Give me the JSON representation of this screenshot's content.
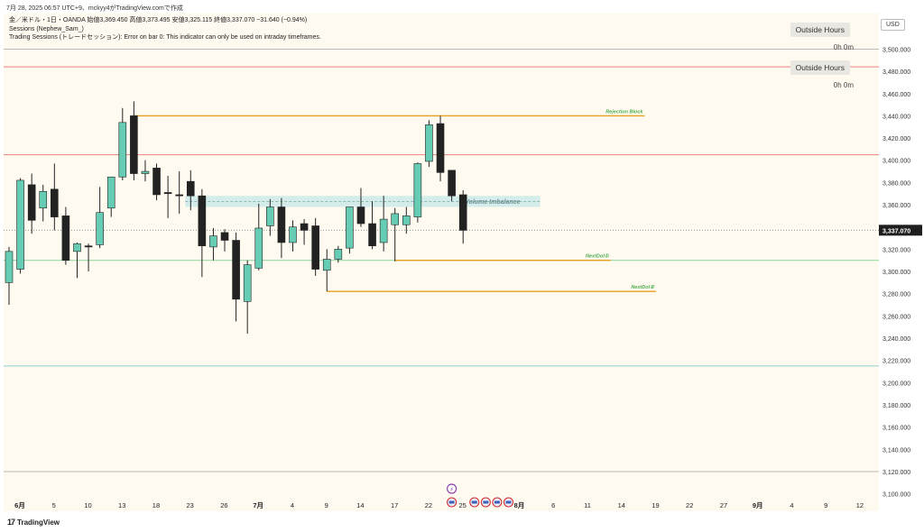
{
  "header": {
    "timestamp_line": "7月 28, 2025 06:57 UTC+9、mckyy4がTradingView.comで作成"
  },
  "legend": {
    "symbol_line": "金／米ドル・1日・OANDA 始値3,369.450 高値3,373.495 安値3,325.115 終値3,337.070 −31.640 (−0.94%)",
    "indicator1": "Sessions (Nephew_Sam_)",
    "indicator2": "Trading Sessions (トレードセッション): Error on bar 0: This indicator can only be used on intraday timeframes."
  },
  "sessions": [
    {
      "label": "Outside Hours",
      "time": "0h 0m"
    },
    {
      "label": "Outside Hours",
      "time": "0h 0m"
    }
  ],
  "currency": "USD",
  "brand": "TradingView",
  "colors": {
    "bull": "#66ccb4",
    "bear": "#222222",
    "red_line": "#f08080",
    "green_line": "#8fd19e",
    "teal_line": "#8ccfcf",
    "orange_level": "#e6a020",
    "imbalance_fill": "#cdeaea",
    "price_label_bg": "#1e1e1e"
  },
  "chart_data": {
    "type": "candlestick",
    "symbol": "XAU/USD",
    "timeframe": "1D",
    "current_price": 3337.07,
    "current_price_label": "3,337.070",
    "ylim": [
      3094,
      3532
    ],
    "y_ticks": [
      3100,
      3120,
      3140,
      3160,
      3180,
      3200,
      3220,
      3240,
      3260,
      3280,
      3300,
      3320,
      3340,
      3360,
      3380,
      3400,
      3420,
      3440,
      3460,
      3480,
      3500
    ],
    "y_tick_labels": [
      "3,100.000",
      "3,120.000",
      "3,140.000",
      "3,160.000",
      "3,180.000",
      "3,200.000",
      "3,220.000",
      "3,240.000",
      "3,260.000",
      "3,280.000",
      "3,300.000",
      "3,320.000",
      "3,340.000",
      "3,360.000",
      "3,380.000",
      "3,400.000",
      "3,420.000",
      "3,440.000",
      "3,460.000",
      "3,480.000",
      "3,500.000"
    ],
    "x_ticks": [
      {
        "label": "6月",
        "bar": 0,
        "bold": true
      },
      {
        "label": "5",
        "bar": 3
      },
      {
        "label": "10",
        "bar": 6
      },
      {
        "label": "13",
        "bar": 9
      },
      {
        "label": "18",
        "bar": 12
      },
      {
        "label": "23",
        "bar": 15
      },
      {
        "label": "26",
        "bar": 18
      },
      {
        "label": "7月",
        "bar": 21,
        "bold": true
      },
      {
        "label": "4",
        "bar": 24
      },
      {
        "label": "9",
        "bar": 27
      },
      {
        "label": "14",
        "bar": 30
      },
      {
        "label": "17",
        "bar": 33
      },
      {
        "label": "22",
        "bar": 36
      },
      {
        "label": "25",
        "bar": 39
      },
      {
        "label": "8月",
        "bar": 44,
        "bold": true
      },
      {
        "label": "6",
        "bar": 47
      },
      {
        "label": "11",
        "bar": 50
      },
      {
        "label": "14",
        "bar": 53
      },
      {
        "label": "19",
        "bar": 56
      },
      {
        "label": "22",
        "bar": 59
      },
      {
        "label": "27",
        "bar": 62
      },
      {
        "label": "9月",
        "bar": 65,
        "bold": true
      },
      {
        "label": "4",
        "bar": 68
      },
      {
        "label": "9",
        "bar": 71
      },
      {
        "label": "12",
        "bar": 74
      }
    ],
    "candles": [
      {
        "o": 3290,
        "h": 3322,
        "l": 3270,
        "c": 3318
      },
      {
        "o": 3302,
        "h": 3384,
        "l": 3298,
        "c": 3382
      },
      {
        "o": 3378,
        "h": 3388,
        "l": 3334,
        "c": 3346
      },
      {
        "o": 3357,
        "h": 3378,
        "l": 3345,
        "c": 3372
      },
      {
        "o": 3374,
        "h": 3397,
        "l": 3337,
        "c": 3349
      },
      {
        "o": 3350,
        "h": 3358,
        "l": 3306,
        "c": 3310
      },
      {
        "o": 3318,
        "h": 3326,
        "l": 3294,
        "c": 3325
      },
      {
        "o": 3323,
        "h": 3325,
        "l": 3300,
        "c": 3322
      },
      {
        "o": 3324,
        "h": 3376,
        "l": 3321,
        "c": 3353
      },
      {
        "o": 3357,
        "h": 3384,
        "l": 3349,
        "c": 3385
      },
      {
        "o": 3385,
        "h": 3447,
        "l": 3382,
        "c": 3434
      },
      {
        "o": 3440,
        "h": 3453,
        "l": 3382,
        "c": 3388
      },
      {
        "o": 3388,
        "h": 3400,
        "l": 3381,
        "c": 3390
      },
      {
        "o": 3393,
        "h": 3397,
        "l": 3364,
        "c": 3369
      },
      {
        "o": 3371,
        "h": 3386,
        "l": 3348,
        "c": 3370
      },
      {
        "o": 3369,
        "h": 3390,
        "l": 3352,
        "c": 3368
      },
      {
        "o": 3381,
        "h": 3391,
        "l": 3355,
        "c": 3368
      },
      {
        "o": 3368,
        "h": 3374,
        "l": 3295,
        "c": 3323
      },
      {
        "o": 3322,
        "h": 3339,
        "l": 3310,
        "c": 3332
      },
      {
        "o": 3335,
        "h": 3338,
        "l": 3318,
        "c": 3328
      },
      {
        "o": 3328,
        "h": 3335,
        "l": 3255,
        "c": 3275
      },
      {
        "o": 3273,
        "h": 3310,
        "l": 3244,
        "c": 3306
      },
      {
        "o": 3303,
        "h": 3361,
        "l": 3301,
        "c": 3339
      },
      {
        "o": 3341,
        "h": 3365,
        "l": 3332,
        "c": 3358
      },
      {
        "o": 3358,
        "h": 3366,
        "l": 3312,
        "c": 3326
      },
      {
        "o": 3326,
        "h": 3346,
        "l": 3318,
        "c": 3340
      },
      {
        "o": 3343,
        "h": 3347,
        "l": 3324,
        "c": 3337
      },
      {
        "o": 3341,
        "h": 3348,
        "l": 3296,
        "c": 3302
      },
      {
        "o": 3301,
        "h": 3320,
        "l": 3282,
        "c": 3311
      },
      {
        "o": 3311,
        "h": 3323,
        "l": 3308,
        "c": 3320
      },
      {
        "o": 3321,
        "h": 3356,
        "l": 3316,
        "c": 3358
      },
      {
        "o": 3358,
        "h": 3375,
        "l": 3340,
        "c": 3343
      },
      {
        "o": 3343,
        "h": 3363,
        "l": 3320,
        "c": 3323
      },
      {
        "o": 3326,
        "h": 3368,
        "l": 3318,
        "c": 3347
      },
      {
        "o": 3342,
        "h": 3357,
        "l": 3309,
        "c": 3352
      },
      {
        "o": 3342,
        "h": 3358,
        "l": 3334,
        "c": 3350
      },
      {
        "o": 3349,
        "h": 3398,
        "l": 3344,
        "c": 3397
      },
      {
        "o": 3399,
        "h": 3436,
        "l": 3394,
        "c": 3432
      },
      {
        "o": 3433,
        "h": 3440,
        "l": 3381,
        "c": 3389
      },
      {
        "o": 3391,
        "h": 3391,
        "l": 3363,
        "c": 3368
      },
      {
        "o": 3369,
        "h": 3373,
        "l": 3325,
        "c": 3337
      }
    ],
    "levels": [
      {
        "name": "red-resistance-upper",
        "price": 3484,
        "color": "#f08080",
        "full": true
      },
      {
        "name": "red-resistance",
        "price": 3405,
        "color": "#f08080",
        "full": true
      },
      {
        "name": "green-support",
        "price": 3310,
        "color": "#8fd19e",
        "full": true
      },
      {
        "name": "teal-support",
        "price": 3215,
        "color": "#8ccfcf",
        "full": true
      },
      {
        "name": "top-grey",
        "price": 3500,
        "color": "#bbbbbb",
        "full": true
      },
      {
        "name": "bottom-grey",
        "price": 3120,
        "color": "#bbbbbb",
        "full": true
      }
    ],
    "annotations": [
      {
        "label": "Rejection Block",
        "price": 3440,
        "from_bar": 11,
        "to_bar": 56,
        "color": "#e6a020"
      },
      {
        "label": "NextDol①",
        "price": 3310,
        "from_bar": 34,
        "to_bar": 53,
        "color": "#e6a020"
      },
      {
        "label": "NextDol②",
        "price": 3282,
        "from_bar": 28,
        "to_bar": 57,
        "color": "#e6a020"
      }
    ],
    "volume_imbalance": {
      "label": "Volume Imbalance",
      "top": 3368,
      "bottom": 3358,
      "from_bar": 16,
      "to_bar": 46
    },
    "event_icons": [
      {
        "bar": 39,
        "kind": "lightning"
      },
      {
        "bar": 39,
        "kind": "flag"
      },
      {
        "bar": 41,
        "kind": "flag"
      },
      {
        "bar": 42,
        "kind": "flag"
      },
      {
        "bar": 43,
        "kind": "flag"
      },
      {
        "bar": 44,
        "kind": "flag"
      }
    ]
  }
}
